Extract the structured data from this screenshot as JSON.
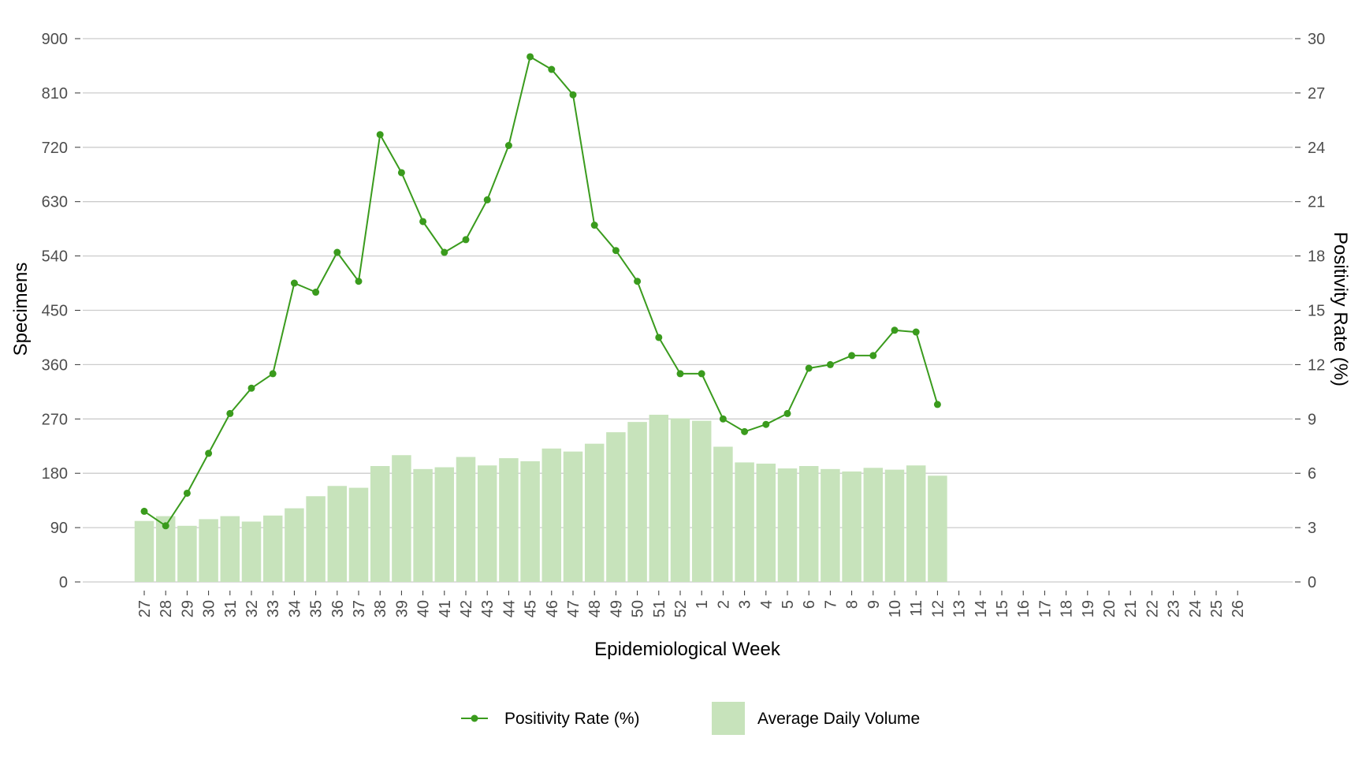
{
  "chart_data": {
    "type": "bar+line",
    "xlabel": "Epidemiological Week",
    "ylabel_left": "Specimens",
    "ylabel_right": "Positivity Rate (%)",
    "ylim_left": [
      0,
      900
    ],
    "ylim_right": [
      0,
      30
    ],
    "yticks_left": [
      0,
      90,
      180,
      270,
      360,
      450,
      540,
      630,
      720,
      810,
      900
    ],
    "yticks_right": [
      0,
      3,
      6,
      9,
      12,
      15,
      18,
      21,
      24,
      27,
      30
    ],
    "grid": "horizontal",
    "legend_position": "bottom",
    "categories": [
      "27",
      "28",
      "29",
      "30",
      "31",
      "32",
      "33",
      "34",
      "35",
      "36",
      "37",
      "38",
      "39",
      "40",
      "41",
      "42",
      "43",
      "44",
      "45",
      "46",
      "47",
      "48",
      "49",
      "50",
      "51",
      "52",
      "1",
      "2",
      "3",
      "4",
      "5",
      "6",
      "7",
      "8",
      "9",
      "10",
      "11",
      "12",
      "13",
      "14",
      "15",
      "16",
      "17",
      "18",
      "19",
      "20",
      "21",
      "22",
      "23",
      "24",
      "25",
      "26"
    ],
    "series": [
      {
        "name": "Average Daily Volume",
        "kind": "bar",
        "axis": "left",
        "color": "#c7e3bb",
        "values": [
          101,
          109,
          93,
          104,
          109,
          100,
          110,
          122,
          142,
          159,
          156,
          192,
          210,
          187,
          190,
          207,
          193,
          205,
          200,
          221,
          216,
          229,
          248,
          265,
          277,
          271,
          267,
          224,
          198,
          196,
          188,
          192,
          187,
          183,
          189,
          186,
          193,
          176,
          null,
          null,
          null,
          null,
          null,
          null,
          null,
          null,
          null,
          null,
          null,
          null,
          null,
          null
        ]
      },
      {
        "name": "Positivity Rate (%)",
        "kind": "line",
        "axis": "right",
        "color": "#3a9b1d",
        "values": [
          3.9,
          3.1,
          4.9,
          7.1,
          9.3,
          10.7,
          11.5,
          16.5,
          16.0,
          18.2,
          16.6,
          24.7,
          22.6,
          19.9,
          18.2,
          18.9,
          21.1,
          24.1,
          29.0,
          28.3,
          26.9,
          19.7,
          18.3,
          16.6,
          13.5,
          11.5,
          11.5,
          9.0,
          8.3,
          8.7,
          9.3,
          11.8,
          12.0,
          12.5,
          12.5,
          13.9,
          13.8,
          9.8,
          null,
          null,
          null,
          null,
          null,
          null,
          null,
          null,
          null,
          null,
          null,
          null,
          null,
          null
        ]
      }
    ]
  }
}
